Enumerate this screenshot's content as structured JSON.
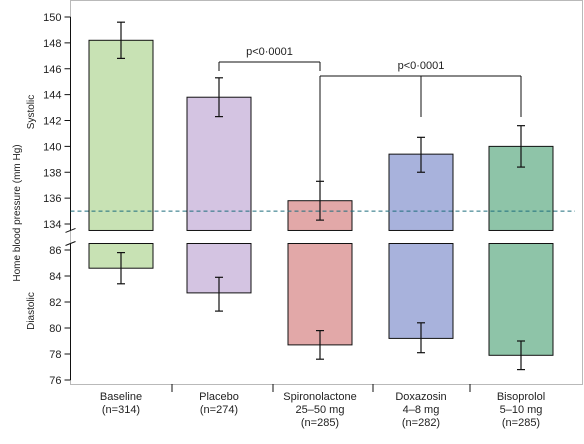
{
  "chart_data": {
    "type": "bar",
    "ylabel": "Home blood pressure (mm Hg)",
    "panels": [
      {
        "name": "Systolic",
        "ylim": [
          133.5,
          150
        ],
        "ticks": [
          134,
          136,
          138,
          140,
          142,
          144,
          146,
          148,
          150
        ]
      },
      {
        "name": "Diastolic",
        "ylim": [
          76,
          86.5
        ],
        "ticks": [
          76,
          78,
          80,
          82,
          84,
          86
        ]
      }
    ],
    "categories": [
      {
        "lines": [
          "Baseline",
          "(n=314)"
        ]
      },
      {
        "lines": [
          "Placebo",
          "(n=274)"
        ]
      },
      {
        "lines": [
          "Spironolactone",
          "25–50 mg",
          "(n=285)"
        ]
      },
      {
        "lines": [
          "Doxazosin",
          "4–8 mg",
          "(n=282)"
        ]
      },
      {
        "lines": [
          "Bisoprolol",
          "5–10 mg",
          "(n=285)"
        ]
      }
    ],
    "systolic": {
      "values": [
        148.2,
        143.8,
        135.8,
        139.4,
        140.0
      ],
      "ci_low": [
        146.8,
        142.3,
        134.3,
        138.0,
        138.4
      ],
      "ci_high": [
        149.6,
        145.3,
        137.3,
        140.7,
        141.6
      ]
    },
    "diastolic": {
      "values": [
        84.6,
        82.7,
        78.7,
        79.2,
        77.9
      ],
      "ci_low": [
        83.4,
        81.3,
        77.6,
        78.1,
        76.8
      ],
      "ci_high": [
        85.8,
        83.9,
        79.8,
        80.4,
        79.0
      ]
    },
    "reference_line": {
      "value": 135,
      "panel": "Systolic",
      "style": "dashed"
    },
    "annotations": [
      {
        "text": "p<0·0001",
        "from": 1,
        "to": 2
      },
      {
        "text": "p<0·0001",
        "from": 2,
        "to": [
          3,
          4
        ]
      }
    ],
    "colors": {
      "fill": [
        "#c8e2b4",
        "#d4c4e2",
        "#e2a8a8",
        "#a8b2dc",
        "#8ec4a8"
      ],
      "stroke": "#111111",
      "reference": "#1f6e7d"
    }
  }
}
